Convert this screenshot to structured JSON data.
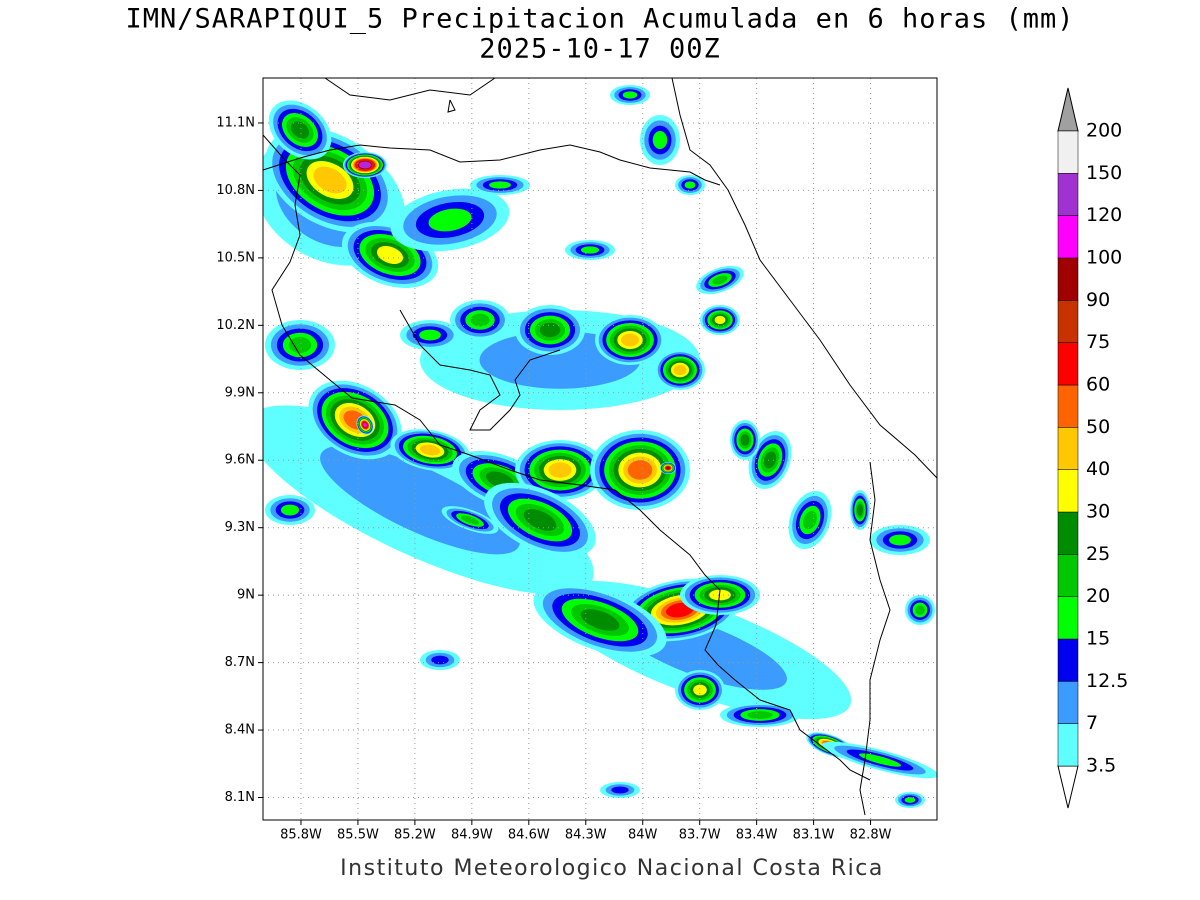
{
  "header": {
    "title": "IMN/SARAPIQUI_5 Precipitacion Acumulada en 6 horas (mm)",
    "subtitle": "2025-10-17 00Z"
  },
  "map": {
    "xlim": [
      -86.0,
      -82.45
    ],
    "ylim": [
      8.0,
      11.3
    ],
    "xticks": [
      {
        "value": -85.8,
        "label": "85.8W"
      },
      {
        "value": -85.5,
        "label": "85.5W"
      },
      {
        "value": -85.2,
        "label": "85.2W"
      },
      {
        "value": -84.9,
        "label": "84.9W"
      },
      {
        "value": -84.6,
        "label": "84.6W"
      },
      {
        "value": -84.3,
        "label": "84.3W"
      },
      {
        "value": -84.0,
        "label": "84W"
      },
      {
        "value": -83.7,
        "label": "83.7W"
      },
      {
        "value": -83.4,
        "label": "83.4W"
      },
      {
        "value": -83.1,
        "label": "83.1W"
      },
      {
        "value": -82.8,
        "label": "82.8W"
      }
    ],
    "yticks": [
      {
        "value": 8.1,
        "label": "8.1N"
      },
      {
        "value": 8.4,
        "label": "8.4N"
      },
      {
        "value": 8.7,
        "label": "8.7N"
      },
      {
        "value": 9.0,
        "label": "9N"
      },
      {
        "value": 9.3,
        "label": "9.3N"
      },
      {
        "value": 9.6,
        "label": "9.6N"
      },
      {
        "value": 9.9,
        "label": "9.9N"
      },
      {
        "value": 10.2,
        "label": "10.2N"
      },
      {
        "value": 10.5,
        "label": "10.5N"
      },
      {
        "value": 10.8,
        "label": "10.8N"
      },
      {
        "value": 11.1,
        "label": "11.1N"
      }
    ],
    "grid": true
  },
  "colorbar": {
    "levels": [
      3.5,
      7,
      12.5,
      15,
      20,
      25,
      30,
      40,
      50,
      60,
      75,
      90,
      100,
      120,
      150,
      200
    ],
    "colors": [
      "#60ffff",
      "#3c9bff",
      "#0000f0",
      "#00ff00",
      "#00c800",
      "#008c00",
      "#ffff00",
      "#ffc800",
      "#ff6400",
      "#ff0000",
      "#c83200",
      "#a00000",
      "#ff00ff",
      "#a032d2",
      "#f0f0f0"
    ],
    "under_color": "#ffffff",
    "over_color": "#a0a0a0"
  },
  "footer": {
    "text": "Instituto Meteorologico Nacional Costa Rica"
  }
}
